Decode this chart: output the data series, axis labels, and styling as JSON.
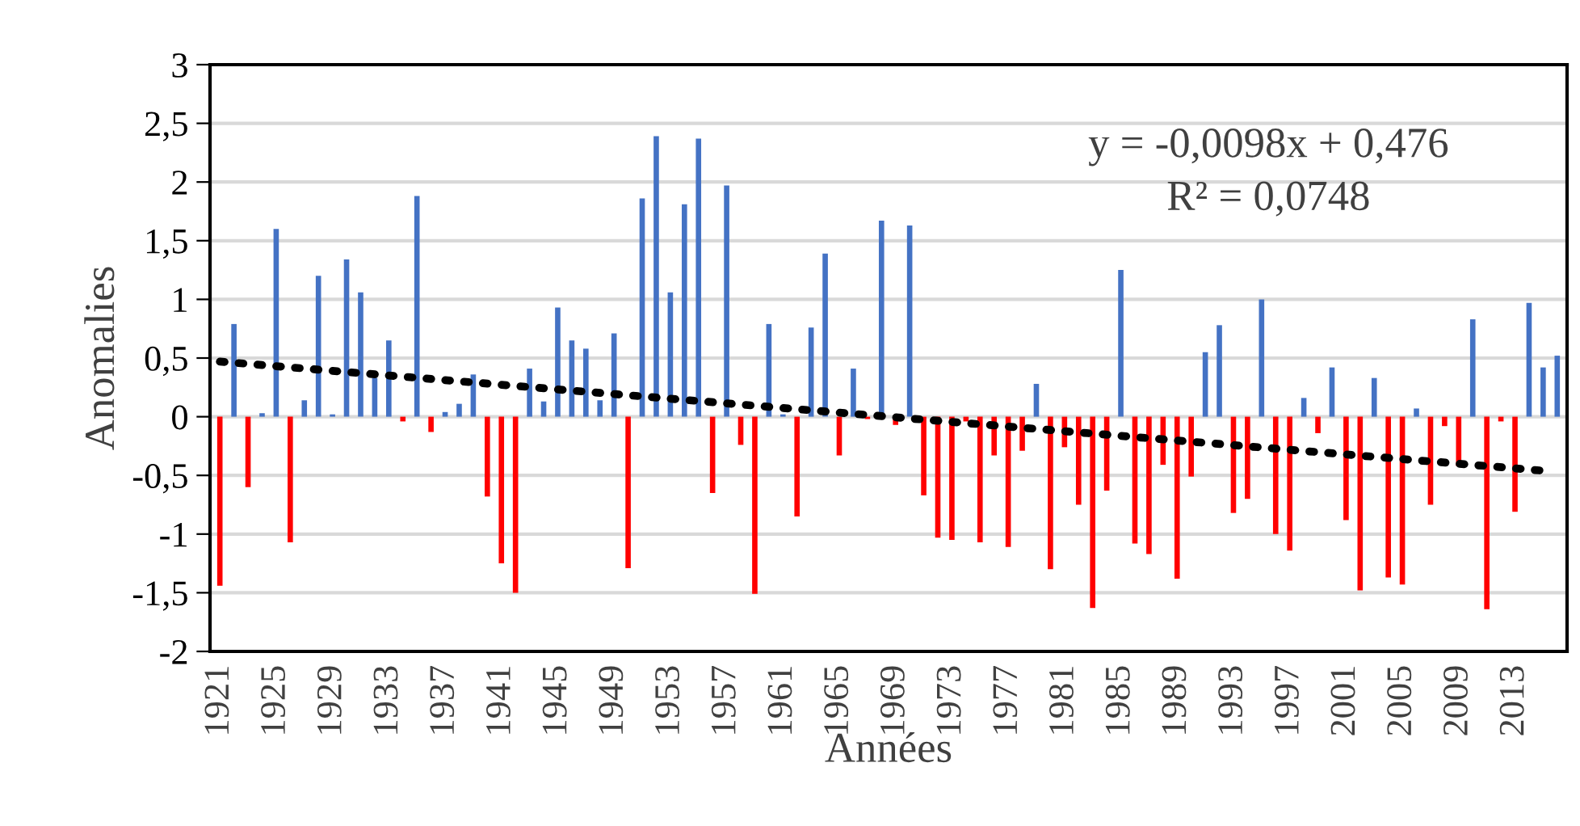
{
  "chart_data": {
    "type": "bar",
    "xlabel": "Années",
    "ylabel": "Anomalies",
    "categories": [
      "1921",
      null,
      null,
      null,
      "1925",
      null,
      null,
      null,
      "1929",
      null,
      null,
      null,
      "1933",
      null,
      null,
      null,
      "1937",
      null,
      null,
      null,
      "1941",
      null,
      null,
      null,
      "1945",
      null,
      null,
      null,
      "1949",
      null,
      null,
      null,
      "1953",
      null,
      null,
      null,
      "1957",
      null,
      null,
      null,
      "1961",
      null,
      null,
      null,
      "1965",
      null,
      null,
      null,
      "1969",
      null,
      null,
      null,
      "1973",
      null,
      null,
      null,
      "1977",
      null,
      null,
      null,
      "1981",
      null,
      null,
      null,
      "1985",
      null,
      null,
      null,
      "1989",
      null,
      null,
      null,
      "1993",
      null,
      null,
      null,
      "1997",
      null,
      null,
      null,
      "2001",
      null,
      null,
      null,
      "2005",
      null,
      null,
      null,
      "2009",
      null,
      null,
      null,
      "2013",
      null,
      null,
      null
    ],
    "series": [
      {
        "values": [
          -1.44,
          0.79,
          -0.6,
          0.03,
          1.6,
          -1.07,
          0.14,
          1.2,
          0.02,
          1.34,
          1.06,
          0.33,
          0.65,
          -0.04,
          1.88,
          -0.13,
          0.04,
          0.11,
          0.36,
          -0.68,
          -1.25,
          -1.5,
          0.41,
          0.13,
          0.93,
          0.65,
          0.58,
          0.14,
          0.71,
          -1.29,
          1.86,
          2.39,
          1.06,
          1.81,
          2.37,
          -0.65,
          1.97,
          -0.24,
          -1.51,
          0.79,
          0.02,
          -0.85,
          0.76,
          1.39,
          -0.33,
          0.41,
          -0.02,
          1.67,
          -0.07,
          1.63,
          -0.67,
          -1.03,
          -1.05,
          -0.04,
          -1.07,
          -0.33,
          -1.11,
          -0.29,
          0.28,
          -1.3,
          -0.26,
          -0.75,
          -1.63,
          -0.63,
          1.25,
          -1.08,
          -1.17,
          -0.41,
          -1.38,
          -0.51,
          0.55,
          0.78,
          -0.82,
          -0.7,
          1.0,
          -1.0,
          -1.14,
          0.16,
          -0.14,
          0.42,
          -0.88,
          -1.48,
          0.33,
          -1.37,
          -1.43,
          0.07,
          -0.75,
          -0.08,
          -0.42,
          0.83,
          -1.64,
          -0.04,
          -0.81,
          0.97,
          0.42,
          0.52
        ],
        "colors": [
          "#ff0000",
          "#4472c4",
          "#ff0000",
          "#4472c4",
          "#4472c4",
          "#ff0000",
          "#4472c4",
          "#4472c4",
          "#4472c4",
          "#4472c4",
          "#4472c4",
          "#4472c4",
          "#4472c4",
          "#ff0000",
          "#4472c4",
          "#ff0000",
          "#4472c4",
          "#4472c4",
          "#4472c4",
          "#ff0000",
          "#ff0000",
          "#ff0000",
          "#4472c4",
          "#4472c4",
          "#4472c4",
          "#4472c4",
          "#4472c4",
          "#4472c4",
          "#4472c4",
          "#ff0000",
          "#4472c4",
          "#4472c4",
          "#4472c4",
          "#4472c4",
          "#4472c4",
          "#ff0000",
          "#4472c4",
          "#ff0000",
          "#ff0000",
          "#4472c4",
          "#4472c4",
          "#ff0000",
          "#4472c4",
          "#4472c4",
          "#ff0000",
          "#4472c4",
          "#ff0000",
          "#4472c4",
          "#ff0000",
          "#4472c4",
          "#ff0000",
          "#ff0000",
          "#ff0000",
          "#ff0000",
          "#ff0000",
          "#ff0000",
          "#ff0000",
          "#ff0000",
          "#4472c4",
          "#ff0000",
          "#ff0000",
          "#ff0000",
          "#ff0000",
          "#ff0000",
          "#4472c4",
          "#ff0000",
          "#ff0000",
          "#ff0000",
          "#ff0000",
          "#ff0000",
          "#4472c4",
          "#4472c4",
          "#ff0000",
          "#ff0000",
          "#4472c4",
          "#ff0000",
          "#ff0000",
          "#4472c4",
          "#ff0000",
          "#4472c4",
          "#ff0000",
          "#ff0000",
          "#4472c4",
          "#ff0000",
          "#ff0000",
          "#4472c4",
          "#ff0000",
          "#ff0000",
          "#ff0000",
          "#4472c4",
          "#ff0000",
          "#ff0000",
          "#ff0000",
          "#4472c4",
          "#4472c4",
          "#4472c4"
        ]
      },
      {
        "type": "line",
        "color": "#000000",
        "line_style": "dotted",
        "values": [
          0.47,
          null,
          null,
          null,
          null,
          null,
          null,
          null,
          null,
          null,
          null,
          null,
          null,
          null,
          null,
          null,
          null,
          null,
          null,
          null,
          null,
          null,
          null,
          null,
          null,
          null,
          null,
          null,
          null,
          null,
          null,
          null,
          null,
          null,
          null,
          null,
          null,
          null,
          null,
          null,
          null,
          null,
          null,
          null,
          null,
          null,
          null,
          null,
          null,
          null,
          null,
          null,
          null,
          null,
          null,
          null,
          null,
          null,
          null,
          null,
          null,
          null,
          null,
          null,
          null,
          null,
          null,
          null,
          null,
          null,
          null,
          null,
          null,
          null,
          null,
          null,
          null,
          null,
          null,
          null,
          null,
          null,
          null,
          null,
          null,
          null,
          null,
          null,
          null,
          null,
          null,
          null,
          null,
          null,
          -0.46,
          null
        ]
      }
    ],
    "ylim": [
      -2,
      3
    ],
    "yticks": [
      -2,
      {
        "value": -1.5,
        "label": "-1,5"
      },
      -1,
      {
        "value": -0.5,
        "label": "-0,5"
      },
      0,
      {
        "value": 0.5,
        "label": "0,5"
      },
      1,
      {
        "value": 1.5,
        "label": "1,5"
      },
      2,
      {
        "value": 2.5,
        "label": "2,5"
      },
      3
    ],
    "grid": "y",
    "legend": false,
    "annotations": [
      "y = -0,0098x + 0,476",
      "R² = 0,0748"
    ]
  }
}
